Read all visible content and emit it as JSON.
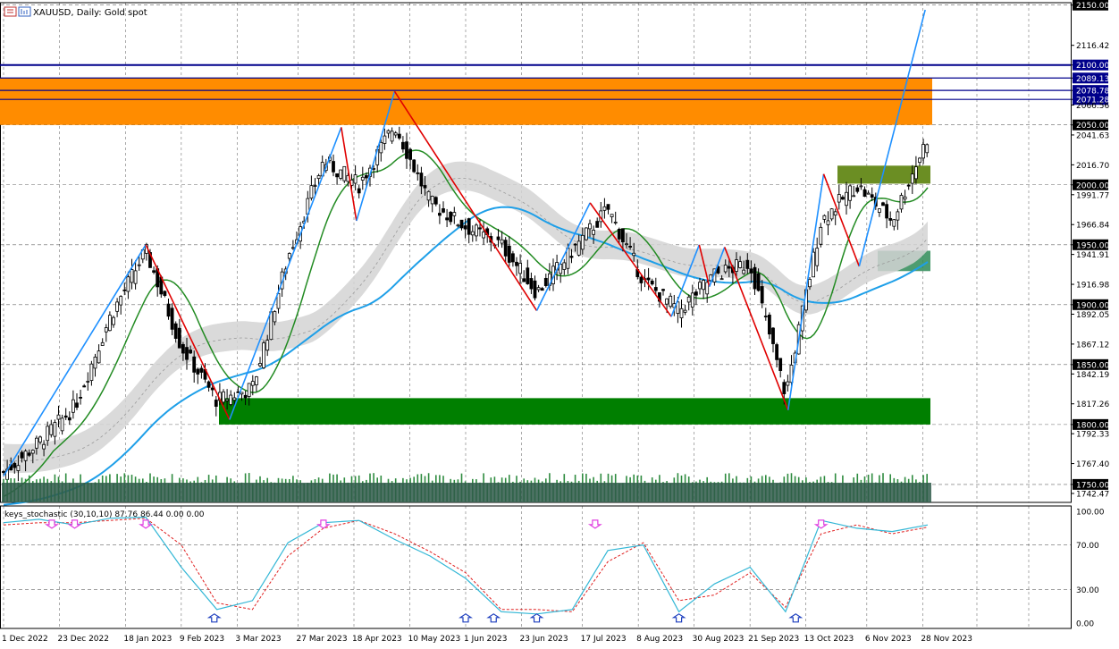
{
  "header": {
    "symbol_label": "XAUUSD, Daily:  Gold spot",
    "icons": [
      "chart-icon",
      "bars-icon"
    ]
  },
  "indicator": {
    "label": "keys_stochastic (30,10,10) 87.76 86.44 0.00 0.00"
  },
  "colors": {
    "bull": "#000000",
    "resistance_zone": "#ff8c00",
    "support_zone": "#007f00",
    "minor_zone": "#6b8e23",
    "teal_zone": "#2e8b57",
    "ma_fast": "#228b22",
    "ma_slow": "#1e9fe8",
    "cloud": "#d3d3d3",
    "zigzag_up": "#1e90ff",
    "zigzag_down": "#e00000",
    "hline": "#00008b",
    "volume": "#2e8b3f",
    "stoch_main": "#33b7d6",
    "stoch_signal": "#e02020",
    "arrow_down": "#e040e0",
    "arrow_up": "#1e3fbf"
  },
  "chart_data": [
    {
      "type": "candlestick",
      "title": "XAUUSD, Daily:  Gold spot",
      "x_ticks": [
        "1 Dec 2022",
        "23 Dec 2022",
        "18 Jan 2023",
        "9 Feb 2023",
        "3 Mar 2023",
        "27 Mar 2023",
        "18 Apr 2023",
        "10 May 2023",
        "1 Jun 2023",
        "23 Jun 2023",
        "17 Jul 2023",
        "8 Aug 2023",
        "30 Aug 2023",
        "21 Sep 2023",
        "13 Oct 2023",
        "6 Nov 2023",
        "28 Nov 2023"
      ],
      "y_ticks": [
        2150.0,
        2116.42,
        2100.0,
        2089.13,
        2078.78,
        2071.28,
        2066.56,
        2050.0,
        2041.63,
        2016.7,
        2000.0,
        1991.77,
        1966.84,
        1950.0,
        1941.91,
        1916.98,
        1900.0,
        1892.05,
        1867.12,
        1850.0,
        1842.19,
        1817.26,
        1800.0,
        1792.33,
        1767.4,
        1750.0,
        1742.47
      ],
      "highlighted_levels": [
        2150.0,
        2100.0,
        2089.13,
        2078.78,
        2071.28,
        2050.0,
        2000.0,
        1950.0,
        1900.0,
        1850.0,
        1800.0,
        1750.0
      ],
      "ylim": [
        1735,
        2152
      ],
      "horizontal_lines": [
        2100.0,
        2089.13,
        2078.78,
        2071.28
      ],
      "zones": [
        {
          "label": "resistance",
          "low": 2050,
          "high": 2089.13
        },
        {
          "label": "support",
          "low": 1800,
          "high": 1822
        },
        {
          "label": "minor",
          "low": 2001,
          "high": 2016
        },
        {
          "label": "teal",
          "low": 1928,
          "high": 1945
        }
      ],
      "zigzag_pivots": [
        {
          "date": "2022-12-01",
          "price": 1757
        },
        {
          "date": "2023-01-26",
          "price": 1950
        },
        {
          "date": "2023-02-28",
          "price": 1804
        },
        {
          "date": "2023-04-13",
          "price": 2048
        },
        {
          "date": "2023-04-19",
          "price": 1970
        },
        {
          "date": "2023-05-04",
          "price": 2078
        },
        {
          "date": "2023-06-29",
          "price": 1895
        },
        {
          "date": "2023-07-20",
          "price": 1985
        },
        {
          "date": "2023-08-21",
          "price": 1890
        },
        {
          "date": "2023-09-01",
          "price": 1950
        },
        {
          "date": "2023-09-05",
          "price": 1915
        },
        {
          "date": "2023-09-11",
          "price": 1948
        },
        {
          "date": "2023-10-06",
          "price": 1812
        },
        {
          "date": "2023-10-20",
          "price": 2009
        },
        {
          "date": "2023-11-03",
          "price": 1932
        },
        {
          "date": "2023-11-29",
          "price": 2146
        }
      ],
      "close_series": {
        "dates": [
          "2022-12-01",
          "2022-12-15",
          "2022-12-29",
          "2023-01-12",
          "2023-01-26",
          "2023-02-09",
          "2023-02-23",
          "2023-03-09",
          "2023-03-23",
          "2023-04-06",
          "2023-04-20",
          "2023-05-04",
          "2023-05-18",
          "2023-06-01",
          "2023-06-15",
          "2023-06-29",
          "2023-07-13",
          "2023-07-27",
          "2023-08-10",
          "2023-08-24",
          "2023-09-07",
          "2023-09-21",
          "2023-10-05",
          "2023-10-19",
          "2023-11-02",
          "2023-11-16",
          "2023-11-30"
        ],
        "values": [
          1760,
          1785,
          1815,
          1890,
          1945,
          1865,
          1820,
          1830,
          1940,
          2020,
          2000,
          2050,
          1985,
          1965,
          1950,
          1910,
          1945,
          1980,
          1920,
          1895,
          1925,
          1935,
          1825,
          1970,
          2000,
          1970,
          2040
        ]
      }
    },
    {
      "type": "line",
      "title": "keys_stochastic (30,10,10) 87.76 86.44 0.00 0.00",
      "y_ticks": [
        100.0,
        70.0,
        30.0,
        0.0
      ],
      "ylim": [
        -5,
        105
      ],
      "x": [
        "2022-12-01",
        "2022-12-15",
        "2022-12-29",
        "2023-01-12",
        "2023-01-26",
        "2023-02-09",
        "2023-02-23",
        "2023-03-09",
        "2023-03-23",
        "2023-04-06",
        "2023-04-20",
        "2023-05-04",
        "2023-05-18",
        "2023-06-01",
        "2023-06-15",
        "2023-06-29",
        "2023-07-13",
        "2023-07-27",
        "2023-08-10",
        "2023-08-24",
        "2023-09-07",
        "2023-09-21",
        "2023-10-05",
        "2023-10-19",
        "2023-11-02",
        "2023-11-16",
        "2023-11-30"
      ],
      "series": [
        {
          "values": [
            90,
            93,
            88,
            94,
            95,
            50,
            12,
            20,
            72,
            90,
            92,
            75,
            60,
            40,
            10,
            8,
            12,
            65,
            70,
            10,
            35,
            50,
            10,
            92,
            85,
            82,
            88
          ]
        },
        {
          "values": [
            88,
            90,
            90,
            92,
            94,
            70,
            18,
            12,
            60,
            85,
            92,
            80,
            64,
            45,
            12,
            12,
            10,
            55,
            72,
            20,
            25,
            45,
            14,
            80,
            88,
            80,
            86
          ]
        }
      ]
    }
  ]
}
